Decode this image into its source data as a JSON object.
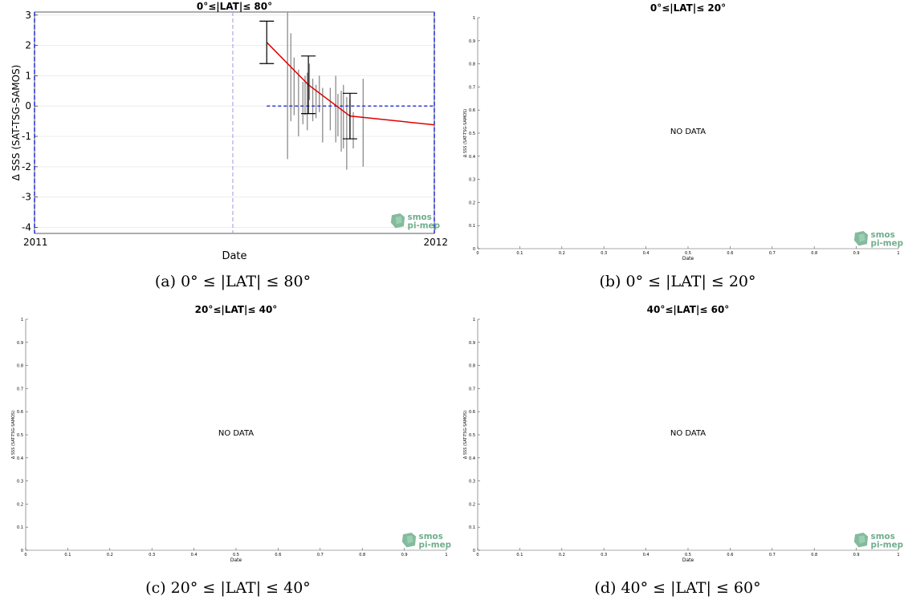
{
  "colors": {
    "mean_line": "#e00000",
    "samples": "#8c8c8c",
    "zero_line": "#1f2bd6",
    "divider": "#9a9ae0",
    "grid": "#ececec",
    "logo": "#6fae8c"
  },
  "logo": {
    "line1": "smos",
    "line2": "pi-mep"
  },
  "chart_data": [
    {
      "id": "a",
      "type": "line",
      "title": "0°≤|LAT|≤ 80°",
      "xlabel": "Date",
      "ylabel": "Δ SSS (SAT-TSG-SAMOS)",
      "x_tick_labels": [
        "2011",
        "2012"
      ],
      "xlim": [
        "2011-01-01",
        "2012-01-01"
      ],
      "ylim": [
        -4.2,
        3.1
      ],
      "yticks": [
        -4,
        -3,
        -2,
        -1,
        0,
        1,
        2,
        3
      ],
      "grid": true,
      "divider_x": "2011-07-01",
      "zero_line": {
        "y": 0,
        "x_start": "2011-08-01",
        "x_end": "2012-01-01"
      },
      "series": [
        {
          "kind": "mean",
          "x": [
            "2011-08-01",
            "2011-09-08",
            "2011-10-16",
            "2012-01-01"
          ],
          "y": [
            2.1,
            0.7,
            -0.33,
            -0.62
          ],
          "error": [
            0.7,
            0.95,
            0.75,
            0
          ]
        },
        {
          "kind": "samples",
          "segments": [
            [
              "2011-08-20",
              -1.75,
              3.1
            ],
            [
              "2011-08-23",
              -0.5,
              2.4
            ],
            [
              "2011-08-26",
              -0.3,
              1.6
            ],
            [
              "2011-08-30",
              -1.0,
              1.2
            ],
            [
              "2011-09-03",
              -0.6,
              0.8
            ],
            [
              "2011-09-05",
              -0.3,
              1.0
            ],
            [
              "2011-09-07",
              -0.8,
              1.1
            ],
            [
              "2011-09-09",
              0.2,
              1.4
            ],
            [
              "2011-09-12",
              -0.5,
              0.9
            ],
            [
              "2011-09-15",
              -0.4,
              0.7
            ],
            [
              "2011-09-18",
              -0.2,
              1.0
            ],
            [
              "2011-09-21",
              -1.2,
              0.6
            ],
            [
              "2011-09-28",
              -0.8,
              0.6
            ],
            [
              "2011-10-03",
              -1.2,
              1.0
            ],
            [
              "2011-10-05",
              -1.0,
              0.4
            ],
            [
              "2011-10-08",
              -1.5,
              0.5
            ],
            [
              "2011-10-10",
              -1.4,
              0.7
            ],
            [
              "2011-10-13",
              -2.1,
              0.3
            ],
            [
              "2011-10-16",
              -1.1,
              0.2
            ],
            [
              "2011-10-19",
              -1.4,
              -0.2
            ],
            [
              "2011-10-28",
              -2.0,
              0.9
            ]
          ]
        }
      ],
      "caption": "(a) 0° ≤ |LAT| ≤ 80°"
    },
    {
      "id": "b",
      "type": "line",
      "title": "0°≤|LAT|≤ 20°",
      "xlabel": "Date",
      "ylabel": "Δ SSS (SAT-TSG-SAMOS)",
      "xlim": [
        0,
        1
      ],
      "ylim": [
        0,
        1
      ],
      "xticks": [
        "0",
        "0.1",
        "0.2",
        "0.3",
        "0.4",
        "0.5",
        "0.6",
        "0.7",
        "0.8",
        "0.9",
        "1"
      ],
      "yticks": [
        "0",
        "0.1",
        "0.2",
        "0.3",
        "0.4",
        "0.5",
        "0.6",
        "0.7",
        "0.8",
        "0.9",
        "1"
      ],
      "message": "NO DATA",
      "series": [],
      "caption": "(b) 0° ≤ |LAT| ≤ 20°"
    },
    {
      "id": "c",
      "type": "line",
      "title": "20°≤|LAT|≤ 40°",
      "xlabel": "Date",
      "ylabel": "Δ SSS (SAT-TSG-SAMOS)",
      "xlim": [
        0,
        1
      ],
      "ylim": [
        0,
        1
      ],
      "xticks": [
        "0",
        "0.1",
        "0.2",
        "0.3",
        "0.4",
        "0.5",
        "0.6",
        "0.7",
        "0.8",
        "0.9",
        "1"
      ],
      "yticks": [
        "0",
        "0.1",
        "0.2",
        "0.3",
        "0.4",
        "0.5",
        "0.6",
        "0.7",
        "0.8",
        "0.9",
        "1"
      ],
      "message": "NO DATA",
      "series": [],
      "caption": "(c) 20° ≤ |LAT| ≤ 40°"
    },
    {
      "id": "d",
      "type": "line",
      "title": "40°≤|LAT|≤ 60°",
      "xlabel": "Date",
      "ylabel": "Δ SSS (SAT-TSG-SAMOS)",
      "xlim": [
        0,
        1
      ],
      "ylim": [
        0,
        1
      ],
      "xticks": [
        "0",
        "0.1",
        "0.2",
        "0.3",
        "0.4",
        "0.5",
        "0.6",
        "0.7",
        "0.8",
        "0.9",
        "1"
      ],
      "yticks": [
        "0",
        "0.1",
        "0.2",
        "0.3",
        "0.4",
        "0.5",
        "0.6",
        "0.7",
        "0.8",
        "0.9",
        "1"
      ],
      "message": "NO DATA",
      "series": [],
      "caption": "(d) 40° ≤ |LAT| ≤ 60°"
    }
  ]
}
